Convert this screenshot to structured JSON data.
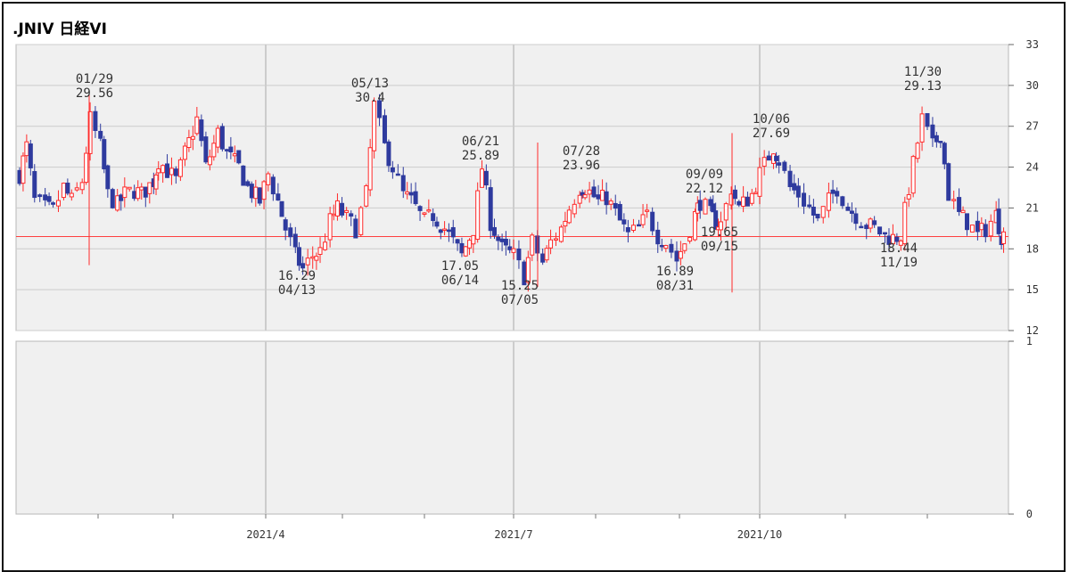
{
  "chart_title": ".JNIV 日経VI",
  "colors": {
    "up": "#ff2a2a",
    "down": "#2e3a9e",
    "ref_line": "#ff4040",
    "grid": "#cccccc",
    "panel_bg": "#f0f0f0"
  },
  "chart_data": [
    {
      "type": "candlestick",
      "title": ".JNIV 日経VI",
      "ylim": [
        12,
        33
      ],
      "yticks": [
        "33",
        "30",
        "27",
        "24",
        "21",
        "18",
        "15",
        "12"
      ],
      "xticks": [
        "2021/4",
        "2021/7",
        "2021/10"
      ],
      "grid": true,
      "reference_line": 18.9,
      "annotations": [
        {
          "date": "01/29",
          "value": "29.56",
          "pos": "above"
        },
        {
          "date": "05/13",
          "value": "30.4",
          "pos": "above"
        },
        {
          "date": "06/21",
          "value": "25.89",
          "pos": "above"
        },
        {
          "date": "07/28",
          "value": "23.96",
          "pos": "above"
        },
        {
          "date": "09/09",
          "value": "22.12",
          "pos": "above"
        },
        {
          "date": "10/06",
          "value": "27.69",
          "pos": "above"
        },
        {
          "date": "11/30",
          "value": "29.13",
          "pos": "above"
        },
        {
          "date": "04/13",
          "value": "16.29",
          "pos": "below"
        },
        {
          "date": "06/14",
          "value": "17.05",
          "pos": "below"
        },
        {
          "date": "07/05",
          "value": "15.25",
          "pos": "below"
        },
        {
          "date": "08/31",
          "value": "16.89",
          "pos": "below"
        },
        {
          "date": "09/15",
          "value": "19.65",
          "pos": "below"
        },
        {
          "date": "11/19",
          "value": "18.44",
          "pos": "below"
        }
      ],
      "close_path": [
        [
          "12/30",
          23.5
        ],
        [
          "01/05",
          25.5
        ],
        [
          "01/08",
          21.5
        ],
        [
          "01/12",
          21.0
        ],
        [
          "01/15",
          20.8
        ],
        [
          "01/19",
          22.5
        ],
        [
          "01/22",
          21.5
        ],
        [
          "01/26",
          23.0
        ],
        [
          "01/29",
          27.5
        ],
        [
          "02/02",
          25.5
        ],
        [
          "02/05",
          22.0
        ],
        [
          "02/09",
          21.2
        ],
        [
          "02/12",
          22.0
        ],
        [
          "02/16",
          22.3
        ],
        [
          "02/19",
          22.0
        ],
        [
          "02/24",
          23.0
        ],
        [
          "02/26",
          24.5
        ],
        [
          "03/02",
          23.0
        ],
        [
          "03/05",
          25.0
        ],
        [
          "03/09",
          27.5
        ],
        [
          "03/12",
          24.0
        ],
        [
          "03/16",
          26.5
        ],
        [
          "03/19",
          25.0
        ],
        [
          "03/23",
          24.0
        ],
        [
          "03/26",
          22.5
        ],
        [
          "03/30",
          21.5
        ],
        [
          "04/02",
          23.5
        ],
        [
          "04/06",
          21.5
        ],
        [
          "04/09",
          19.5
        ],
        [
          "04/13",
          17.5
        ],
        [
          "04/16",
          16.5
        ],
        [
          "04/20",
          17.5
        ],
        [
          "04/23",
          17.8
        ],
        [
          "04/27",
          20.0
        ],
        [
          "04/30",
          21.0
        ],
        [
          "05/06",
          19.5
        ],
        [
          "05/10",
          22.0
        ],
        [
          "05/13",
          28.5
        ],
        [
          "05/17",
          25.5
        ],
        [
          "05/20",
          24.0
        ],
        [
          "05/24",
          22.0
        ],
        [
          "05/27",
          21.5
        ],
        [
          "06/01",
          20.0
        ],
        [
          "06/04",
          20.5
        ],
        [
          "06/08",
          19.5
        ],
        [
          "06/11",
          18.5
        ],
        [
          "06/14",
          17.5
        ],
        [
          "06/18",
          19.5
        ],
        [
          "06/21",
          24.0
        ],
        [
          "06/24",
          20.0
        ],
        [
          "06/28",
          18.0
        ],
        [
          "07/01",
          17.5
        ],
        [
          "07/05",
          16.0
        ],
        [
          "07/08",
          18.5
        ],
        [
          "07/12",
          17.0
        ],
        [
          "07/15",
          18.5
        ],
        [
          "07/19",
          19.5
        ],
        [
          "07/22",
          21.0
        ],
        [
          "07/26",
          22.5
        ],
        [
          "07/28",
          22.5
        ],
        [
          "08/02",
          21.5
        ],
        [
          "08/05",
          21.8
        ],
        [
          "08/10",
          20.0
        ],
        [
          "08/13",
          19.0
        ],
        [
          "08/17",
          19.5
        ],
        [
          "08/20",
          20.5
        ],
        [
          "08/24",
          19.0
        ],
        [
          "08/27",
          18.5
        ],
        [
          "08/31",
          17.2
        ],
        [
          "09/03",
          18.5
        ],
        [
          "09/07",
          20.5
        ],
        [
          "09/09",
          21.5
        ],
        [
          "09/13",
          20.5
        ],
        [
          "09/15",
          20.0
        ],
        [
          "09/17",
          19.8
        ],
        [
          "09/21",
          22.5
        ],
        [
          "09/24",
          21.0
        ],
        [
          "09/29",
          22.0
        ],
        [
          "10/01",
          23.5
        ],
        [
          "10/06",
          25.5
        ],
        [
          "10/08",
          24.5
        ],
        [
          "10/12",
          22.5
        ],
        [
          "10/15",
          22.0
        ],
        [
          "10/19",
          21.0
        ],
        [
          "10/22",
          20.0
        ],
        [
          "10/26",
          21.5
        ],
        [
          "10/29",
          22.5
        ],
        [
          "11/02",
          21.0
        ],
        [
          "11/05",
          20.5
        ],
        [
          "11/09",
          19.8
        ],
        [
          "11/12",
          19.5
        ],
        [
          "11/16",
          19.0
        ],
        [
          "11/19",
          18.8
        ],
        [
          "11/22",
          19.0
        ],
        [
          "11/25",
          22.5
        ],
        [
          "11/30",
          27.5
        ],
        [
          "12/03",
          25.5
        ],
        [
          "12/06",
          26.5
        ],
        [
          "12/09",
          22.0
        ],
        [
          "12/13",
          20.5
        ],
        [
          "12/16",
          20.0
        ],
        [
          "12/20",
          19.0
        ],
        [
          "12/23",
          19.5
        ],
        [
          "12/27",
          20.5
        ],
        [
          "12/29",
          19.0
        ],
        [
          "12/30",
          19.0
        ]
      ]
    },
    {
      "type": "bar",
      "title": "",
      "ylim": [
        0,
        1
      ],
      "yticks": [
        "1",
        "0"
      ],
      "values": []
    }
  ]
}
